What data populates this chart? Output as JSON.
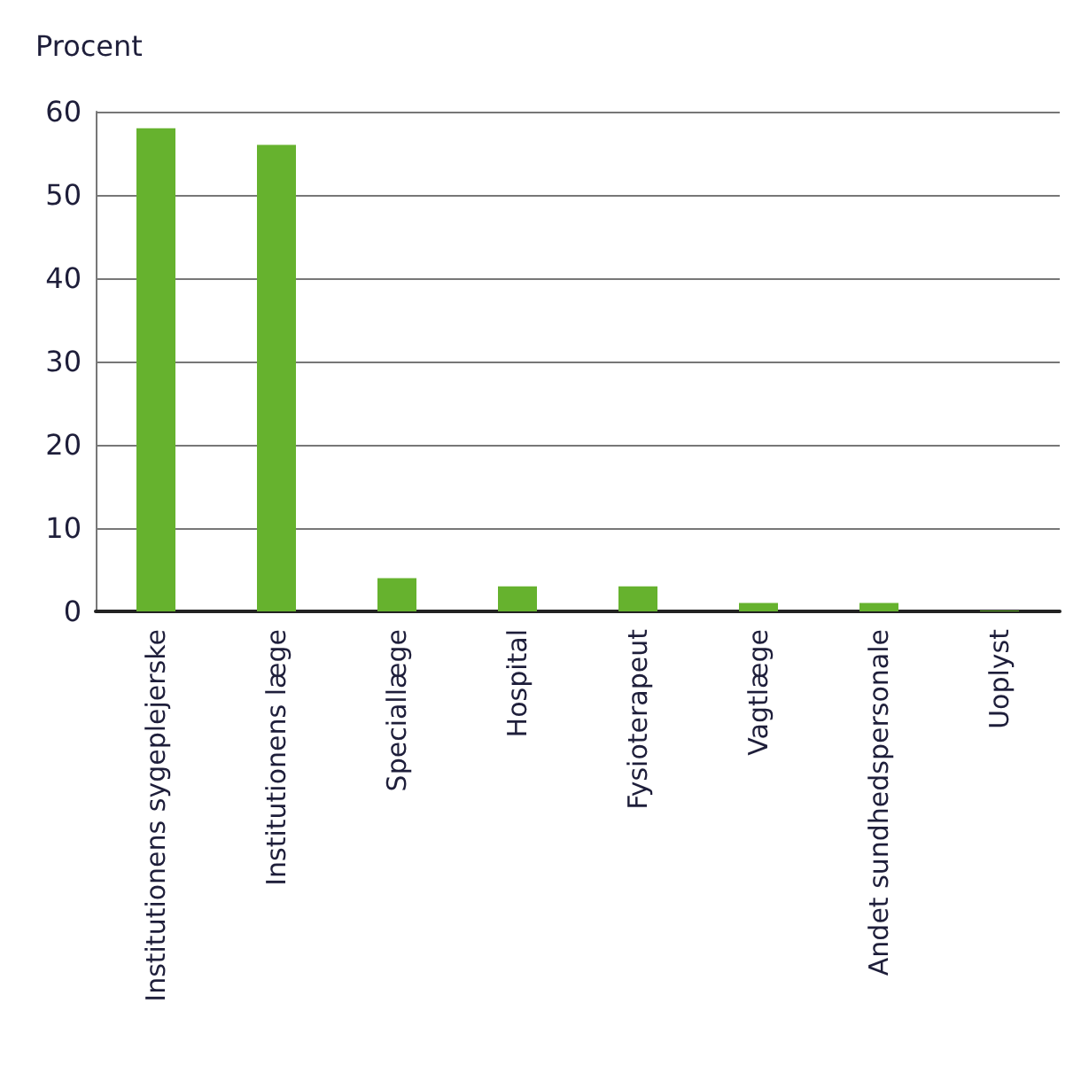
{
  "chart_data": {
    "type": "bar",
    "ylabel": "Procent",
    "categories": [
      "Institutionens sygeplejerske",
      "Institutionens læge",
      "Speciallæge",
      "Hospital",
      "Fysioterapeut",
      "Vagtlæge",
      "Andet sundhedspersonale",
      "Uoplyst"
    ],
    "values": [
      58,
      56,
      4,
      3,
      3,
      1,
      1,
      0.1
    ],
    "color": "#66b22e",
    "ylim": [
      0,
      60
    ],
    "yticks": [
      0,
      10,
      20,
      30,
      40,
      50,
      60
    ],
    "grid": "y"
  }
}
